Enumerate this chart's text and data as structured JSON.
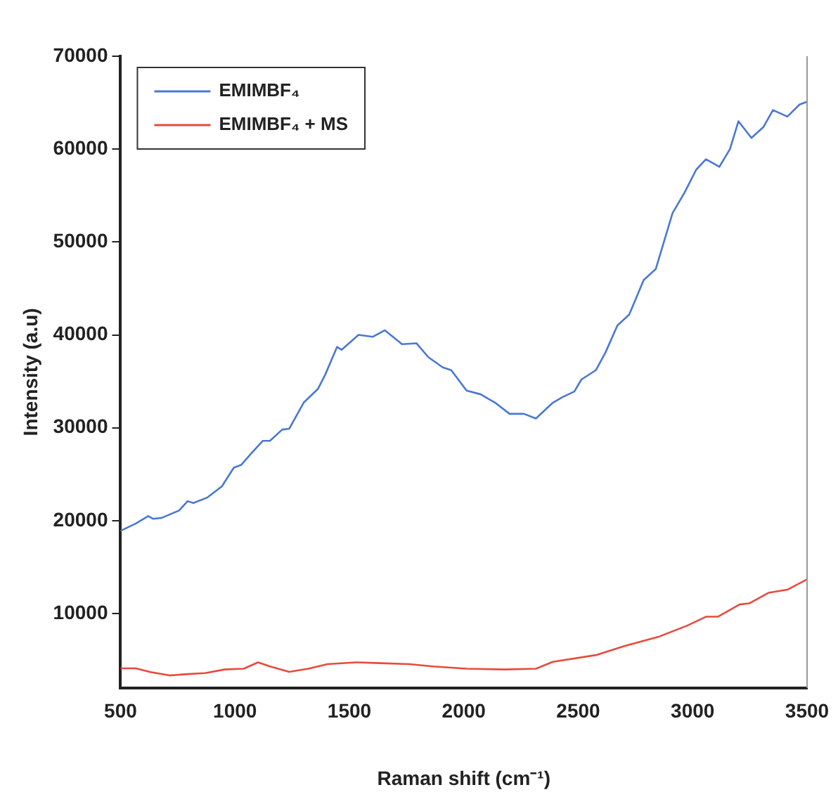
{
  "chart_data": {
    "type": "line",
    "xlabel": "Raman shift (cm⁻¹)",
    "ylabel": "Intensity (a.u)",
    "xlim": [
      500,
      3500
    ],
    "xticks": [
      500,
      1000,
      1500,
      2000,
      2500,
      3000,
      3500
    ],
    "ylim": [
      2000,
      70000
    ],
    "yticks": [
      10000,
      20000,
      30000,
      40000,
      50000,
      60000,
      70000
    ],
    "grid": false,
    "legend": "top left",
    "marker": "none",
    "line_style": "solid",
    "series": [
      {
        "name": "EMIMBF₄",
        "color": "#4a78d4",
        "x": [
          500,
          567,
          621,
          642,
          680,
          756,
          793,
          818,
          880,
          943,
          995,
          1027,
          1070,
          1122,
          1153,
          1206,
          1237,
          1300,
          1363,
          1394,
          1446,
          1466,
          1540,
          1603,
          1655,
          1730,
          1793,
          1845,
          1908,
          1945,
          2012,
          2074,
          2137,
          2200,
          2263,
          2315,
          2389,
          2431,
          2483,
          2514,
          2577,
          2619,
          2671,
          2723,
          2786,
          2839,
          2912,
          2964,
          3016,
          3058,
          3117,
          3163,
          3200,
          3257,
          3310,
          3351,
          3414,
          3467,
          3500
        ],
        "values": [
          18900,
          19700,
          20500,
          20200,
          20300,
          21100,
          22100,
          21900,
          22500,
          23700,
          25700,
          26000,
          27200,
          28600,
          28600,
          29800,
          29900,
          32700,
          34200,
          35700,
          38700,
          38400,
          40000,
          39800,
          40500,
          39000,
          39100,
          37600,
          36500,
          36200,
          34000,
          33600,
          32700,
          31500,
          31500,
          31000,
          32700,
          33300,
          33900,
          35200,
          36200,
          38100,
          41000,
          42200,
          45900,
          47100,
          53100,
          55300,
          57800,
          58900,
          58100,
          60000,
          63000,
          61200,
          62400,
          64200,
          63500,
          64800,
          65100
        ]
      },
      {
        "name": "EMIMBF₄ + MS",
        "color": "#e84a3c",
        "x": [
          500,
          567,
          630,
          714,
          797,
          870,
          955,
          1038,
          1101,
          1153,
          1237,
          1321,
          1404,
          1530,
          1635,
          1760,
          1865,
          2012,
          2179,
          2315,
          2389,
          2577,
          2702,
          2849,
          2975,
          3058,
          3110,
          3205,
          3247,
          3331,
          3414,
          3500
        ],
        "values": [
          4100,
          4100,
          3700,
          3340,
          3490,
          3590,
          3980,
          4070,
          4750,
          4310,
          3730,
          4070,
          4560,
          4750,
          4660,
          4560,
          4310,
          4070,
          3980,
          4070,
          4800,
          5530,
          6500,
          7480,
          8690,
          9660,
          9660,
          10980,
          11100,
          12230,
          12570,
          13690
        ]
      }
    ]
  }
}
